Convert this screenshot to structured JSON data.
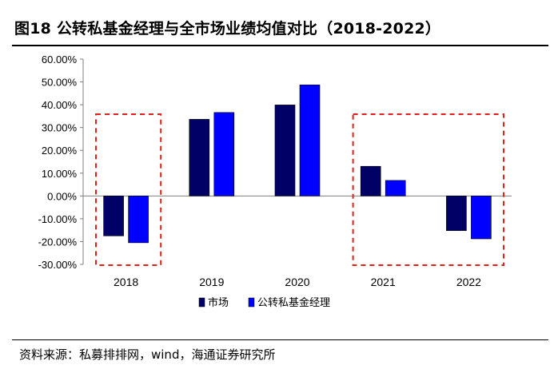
{
  "title": "图18 公转私基金经理与全市场业绩均值对比（2018-2022）",
  "source": "资料来源：私募排排网，wind，海通证券研究所",
  "colors": {
    "market": "#000066",
    "fund": "#0000ff",
    "highlight_box": "#e0201b"
  },
  "chart_data": {
    "type": "bar",
    "categories": [
      "2018",
      "2019",
      "2020",
      "2021",
      "2022"
    ],
    "series": [
      {
        "name": "市场",
        "values": [
          -17.5,
          33.6,
          39.9,
          13.0,
          -15.2
        ]
      },
      {
        "name": "公转私基金经理",
        "values": [
          -20.5,
          36.6,
          48.7,
          6.8,
          -18.8
        ]
      }
    ],
    "ylim": [
      -30,
      60
    ],
    "yticks": [
      60,
      50,
      40,
      30,
      20,
      10,
      0,
      -10,
      -20,
      -30
    ],
    "ytick_labels": [
      "60.00%",
      "50.00%",
      "40.00%",
      "30.00%",
      "20.00%",
      "10.00%",
      "0.00%",
      "-10.00%",
      "-20.00%",
      "-30.00%"
    ],
    "highlighted_categories": [
      [
        "2018"
      ],
      [
        "2021",
        "2022"
      ]
    ],
    "legend_position": "bottom",
    "grid": false
  }
}
